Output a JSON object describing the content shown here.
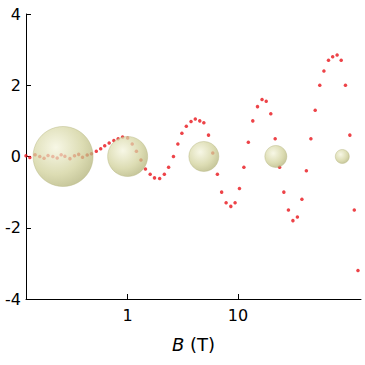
{
  "chart_data": {
    "type": "scatter",
    "x_label": "B (T)",
    "log": "x",
    "grid": false,
    "xlim": [
      0.12,
      130
    ],
    "xticks": [
      1,
      10
    ],
    "ylim": [
      -4,
      4
    ],
    "yticks": [
      -4,
      -2,
      0,
      2,
      4
    ],
    "series": [
      {
        "type": "scatter",
        "color": "#e8141a",
        "marker": "circle",
        "x": [
          0.12,
          0.13,
          0.145,
          0.16,
          0.175,
          0.19,
          0.21,
          0.23,
          0.25,
          0.27,
          0.3,
          0.33,
          0.36,
          0.39,
          0.43,
          0.47,
          0.52,
          0.57,
          0.62,
          0.68,
          0.75,
          0.82,
          0.9,
          1.0,
          1.1,
          1.2,
          1.32,
          1.45,
          1.6,
          1.75,
          1.95,
          2.15,
          2.35,
          2.6,
          2.85,
          3.1,
          3.4,
          3.75,
          4.1,
          4.5,
          4.9,
          5.4,
          5.9,
          6.5,
          7.1,
          7.8,
          8.6,
          9.4,
          10.3,
          11.3,
          12.4,
          13.6,
          15,
          16.5,
          18,
          19.8,
          21.7,
          23.8,
          26,
          28.6,
          31.4,
          34.5,
          37.9,
          41.6,
          45.7,
          50,
          55,
          60,
          66,
          72,
          79,
          86,
          94,
          103,
          113,
          122
        ],
        "values": [
          0.02,
          -0.03,
          0.05,
          0.0,
          -0.05,
          0.03,
          0.0,
          -0.04,
          0.05,
          0.01,
          -0.06,
          0.02,
          0.06,
          -0.02,
          0.04,
          0.08,
          0.15,
          0.22,
          0.3,
          0.38,
          0.45,
          0.5,
          0.55,
          0.52,
          0.35,
          0.15,
          -0.1,
          -0.35,
          -0.5,
          -0.6,
          -0.62,
          -0.5,
          -0.3,
          0.0,
          0.35,
          0.65,
          0.85,
          0.98,
          1.05,
          1.0,
          0.95,
          0.6,
          0.1,
          -0.5,
          -1.0,
          -1.3,
          -1.4,
          -1.3,
          -0.9,
          -0.3,
          0.4,
          1.0,
          1.4,
          1.6,
          1.55,
          1.2,
          0.5,
          -0.3,
          -1.0,
          -1.5,
          -1.8,
          -1.7,
          -1.2,
          -0.4,
          0.5,
          1.3,
          2.0,
          2.4,
          2.7,
          2.8,
          2.85,
          2.7,
          2.0,
          0.6,
          -1.5,
          -3.2
        ]
      },
      {
        "type": "bubble",
        "color": "#cfcf96",
        "marker": "sphere",
        "x": [
          0.26,
          1.0,
          4.9,
          22,
          88
        ],
        "values": [
          0,
          0,
          0,
          0,
          0
        ],
        "size": [
          60,
          40,
          30,
          22,
          14
        ]
      }
    ]
  }
}
